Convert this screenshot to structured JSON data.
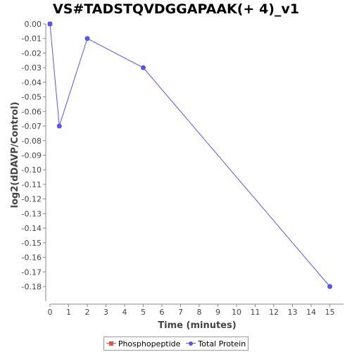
{
  "chart_data": {
    "type": "line",
    "title": "VS#TADSTQVDGGAPAAK(+ 4)_v1",
    "xlabel": "Time (minutes)",
    "ylabel": "log2(dDAVP/Control)",
    "xlim": [
      0,
      16
    ],
    "ylim": [
      -0.19,
      0.0
    ],
    "x_ticks": [
      0,
      1,
      2,
      3,
      4,
      5,
      6,
      7,
      8,
      9,
      10,
      11,
      12,
      13,
      14,
      15
    ],
    "y_ticks": [
      0.0,
      -0.01,
      -0.02,
      -0.03,
      -0.04,
      -0.05,
      -0.06,
      -0.07,
      -0.08,
      -0.09,
      -0.1,
      -0.11,
      -0.12,
      -0.13,
      -0.14,
      -0.15,
      -0.16,
      -0.17,
      -0.18
    ],
    "y_tick_labels": [
      "0.00",
      "-0.01",
      "-0.02",
      "-0.03",
      "-0.04",
      "-0.05",
      "-0.06",
      "-0.07",
      "-0.08",
      "-0.09",
      "-0.10",
      "-0.11",
      "-0.12",
      "-0.13",
      "-0.14",
      "-0.15",
      "-0.16",
      "-0.17",
      "-0.18"
    ],
    "grid": false,
    "legend_position": "bottom-center",
    "series": [
      {
        "name": "Phosphopeptide",
        "color": "#e8504e",
        "marker": "square",
        "x": [
          0
        ],
        "y": [
          0.0
        ]
      },
      {
        "name": "Total Protein",
        "color": "#5555ee",
        "marker": "circle",
        "x": [
          0,
          0.5,
          2,
          5,
          15
        ],
        "y": [
          0.0,
          -0.07,
          -0.01,
          -0.03,
          -0.18
        ]
      }
    ]
  }
}
